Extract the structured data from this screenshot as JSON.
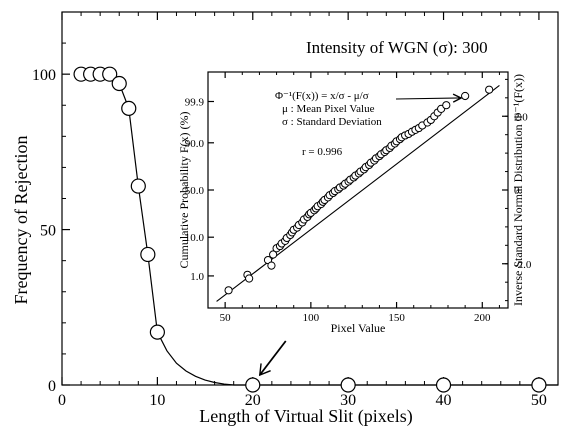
{
  "chart_data": [
    {
      "type": "line",
      "xlabel": "Length of Virtual Slit  (pixels)",
      "ylabel": "Frequency of Rejection",
      "annotation": "Intensity of WGN (σ): 300",
      "xlim": [
        0,
        52
      ],
      "ylim": [
        0,
        120
      ],
      "xticks": [
        0,
        10,
        20,
        30,
        40,
        50
      ],
      "yticks": [
        0,
        50,
        100
      ],
      "x_minor_step": 2,
      "y_minor_step": 10,
      "markers": "open-circle",
      "series": [
        {
          "points": [
            [
              2,
              100
            ],
            [
              3,
              100
            ],
            [
              4,
              100
            ],
            [
              5,
              100
            ],
            [
              6,
              97
            ],
            [
              7,
              89
            ],
            [
              8,
              64
            ],
            [
              9,
              42
            ],
            [
              10,
              17
            ],
            [
              20,
              0
            ],
            [
              30,
              0
            ],
            [
              40,
              0
            ],
            [
              50,
              0
            ]
          ],
          "curve": [
            [
              5,
              100
            ],
            [
              6,
              97
            ],
            [
              7,
              89
            ],
            [
              8,
              64
            ],
            [
              9,
              42
            ],
            [
              10,
              17
            ],
            [
              11,
              11
            ],
            [
              12,
              7
            ],
            [
              13,
              4.5
            ],
            [
              14,
              2.8
            ],
            [
              15,
              1.6
            ],
            [
              16,
              0.8
            ],
            [
              17,
              0.3
            ],
            [
              18,
              0
            ]
          ]
        }
      ],
      "arrow_to": [
        20,
        0
      ]
    },
    {
      "type": "scatter",
      "xlabel": "Pixel Value",
      "ylabel_left": "Cumulative Probability F(x) (%)",
      "ylabel_right": "Inverse Standard Normal Distribution Φ⁻¹(F(x))",
      "xlim": [
        40,
        215
      ],
      "ylim": [
        -3.2,
        3.2
      ],
      "xticks": [
        50,
        100,
        150,
        200
      ],
      "x_minor_step": 10,
      "left_ticks": [
        {
          "label": "1.0",
          "z": -2.33
        },
        {
          "label": "10.0",
          "z": -1.28
        },
        {
          "label": "50.0",
          "z": 0
        },
        {
          "label": "90.0",
          "z": 1.28
        },
        {
          "label": "99.9",
          "z": 2.4
        }
      ],
      "right_ticks": [
        {
          "label": "-2.0",
          "z": -2
        },
        {
          "label": "0",
          "z": 0
        },
        {
          "label": "2.0",
          "z": 2
        }
      ],
      "right_minor_step": 0.5,
      "formula": [
        "Φ⁻¹(F(x)) = x/σ - μ/σ",
        "μ : Mean Pixel Value",
        "σ : Standard Deviation"
      ],
      "r_text": "r = 0.996",
      "fit_line": {
        "slope": 0.0355,
        "intercept": -4.62,
        "x_range": [
          45,
          210
        ]
      },
      "points": [
        [
          52,
          -2.72
        ],
        [
          63,
          -2.3
        ],
        [
          64,
          -2.4
        ],
        [
          75,
          -1.9
        ],
        [
          77,
          -2.05
        ],
        [
          78,
          -1.75
        ],
        [
          80,
          -1.58
        ],
        [
          82,
          -1.52
        ],
        [
          83,
          -1.45
        ],
        [
          85,
          -1.38
        ],
        [
          86,
          -1.3
        ],
        [
          88,
          -1.22
        ],
        [
          89,
          -1.15
        ],
        [
          90,
          -1.08
        ],
        [
          92,
          -1.02
        ],
        [
          93,
          -0.95
        ],
        [
          95,
          -0.88
        ],
        [
          96,
          -0.8
        ],
        [
          98,
          -0.73
        ],
        [
          99,
          -0.66
        ],
        [
          100,
          -0.62
        ],
        [
          102,
          -0.55
        ],
        [
          103,
          -0.5
        ],
        [
          104,
          -0.44
        ],
        [
          106,
          -0.38
        ],
        [
          107,
          -0.32
        ],
        [
          108,
          -0.27
        ],
        [
          110,
          -0.2
        ],
        [
          111,
          -0.14
        ],
        [
          113,
          -0.08
        ],
        [
          114,
          -0.03
        ],
        [
          116,
          0.02
        ],
        [
          117,
          0.07
        ],
        [
          119,
          0.12
        ],
        [
          120,
          0.17
        ],
        [
          122,
          0.23
        ],
        [
          123,
          0.28
        ],
        [
          125,
          0.34
        ],
        [
          126,
          0.39
        ],
        [
          128,
          0.45
        ],
        [
          129,
          0.5
        ],
        [
          131,
          0.56
        ],
        [
          132,
          0.62
        ],
        [
          134,
          0.68
        ],
        [
          135,
          0.74
        ],
        [
          137,
          0.8
        ],
        [
          138,
          0.86
        ],
        [
          140,
          0.92
        ],
        [
          141,
          0.97
        ],
        [
          143,
          1.03
        ],
        [
          144,
          1.08
        ],
        [
          146,
          1.14
        ],
        [
          147,
          1.2
        ],
        [
          149,
          1.26
        ],
        [
          150,
          1.32
        ],
        [
          152,
          1.38
        ],
        [
          153,
          1.43
        ],
        [
          155,
          1.48
        ],
        [
          157,
          1.52
        ],
        [
          159,
          1.58
        ],
        [
          161,
          1.63
        ],
        [
          163,
          1.68
        ],
        [
          165,
          1.75
        ],
        [
          168,
          1.83
        ],
        [
          170,
          1.9
        ],
        [
          172,
          2.0
        ],
        [
          174,
          2.1
        ],
        [
          176,
          2.2
        ],
        [
          179,
          2.3
        ],
        [
          190,
          2.55
        ],
        [
          204,
          2.72
        ]
      ],
      "arrow_to": [
        190,
        2.55
      ]
    }
  ]
}
